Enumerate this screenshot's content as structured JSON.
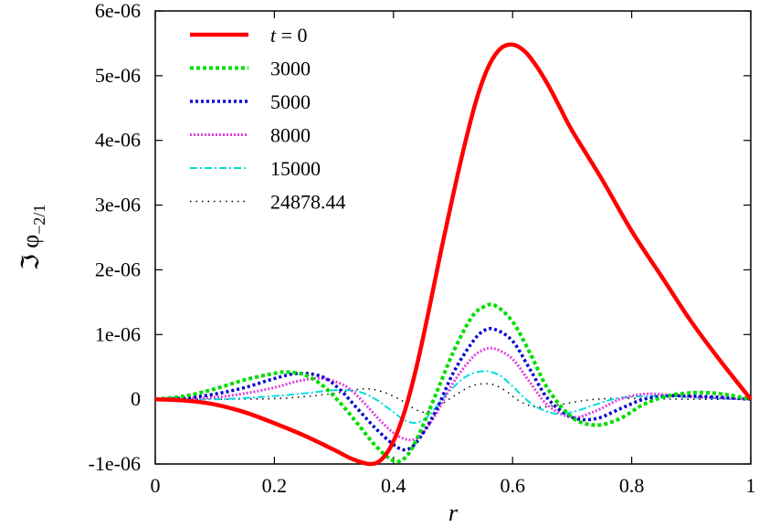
{
  "chart_data": {
    "type": "line",
    "xlabel": "r",
    "ylabel": {
      "prefix": "ℑ φ",
      "subscript": "−2/1"
    },
    "xlim": [
      0,
      1
    ],
    "ylim": [
      -1e-06,
      6e-06
    ],
    "xticks": [
      0,
      0.2,
      0.4,
      0.6,
      0.8,
      1
    ],
    "xtick_labels": [
      "0",
      "0.2",
      "0.4",
      "0.6",
      "0.8",
      "1"
    ],
    "yticks": [
      -1e-06,
      0,
      1e-06,
      2e-06,
      3e-06,
      4e-06,
      5e-06,
      6e-06
    ],
    "ytick_labels": [
      "-1e-06",
      "0",
      "1e-06",
      "2e-06",
      "3e-06",
      "4e-06",
      "5e-06",
      "6e-06"
    ],
    "grid": false,
    "legend_position": "top-left",
    "series": [
      {
        "name": "t = 0",
        "name_italic": "t",
        "name_rest": " = 0",
        "color": "#ff0000",
        "dash": "",
        "width": 4.5,
        "x": [
          0,
          0.05,
          0.1,
          0.15,
          0.2,
          0.25,
          0.3,
          0.33,
          0.36,
          0.38,
          0.4,
          0.42,
          0.44,
          0.46,
          0.48,
          0.5,
          0.52,
          0.54,
          0.56,
          0.58,
          0.6,
          0.62,
          0.64,
          0.66,
          0.68,
          0.7,
          0.75,
          0.8,
          0.85,
          0.9,
          0.95,
          1
        ],
        "y": [
          0,
          -2e-08,
          -8e-08,
          -2e-07,
          -3.7e-07,
          -5.6e-07,
          -7.8e-07,
          -9.2e-07,
          -1e-06,
          -9.3e-07,
          -6.5e-07,
          -1.5e-07,
          5.5e-07,
          1.4e-06,
          2.3e-06,
          3.15e-06,
          3.95e-06,
          4.65e-06,
          5.15e-06,
          5.42e-06,
          5.48e-06,
          5.38e-06,
          5.15e-06,
          4.85e-06,
          4.5e-06,
          4.15e-06,
          3.4e-06,
          2.6e-06,
          1.9e-06,
          1.2e-06,
          5.8e-07,
          0
        ]
      },
      {
        "name": "3000",
        "color": "#00dd00",
        "dash": "4,3",
        "width": 4,
        "x": [
          0,
          0.05,
          0.1,
          0.15,
          0.2,
          0.22,
          0.25,
          0.28,
          0.31,
          0.34,
          0.37,
          0.4,
          0.42,
          0.44,
          0.47,
          0.5,
          0.53,
          0.55,
          0.57,
          0.6,
          0.63,
          0.66,
          0.7,
          0.74,
          0.78,
          0.82,
          0.86,
          0.9,
          0.93,
          0.96,
          1
        ],
        "y": [
          0,
          5e-08,
          1.6e-07,
          3e-07,
          4e-07,
          4.2e-07,
          3.8e-07,
          2.2e-07,
          -5e-08,
          -3.8e-07,
          -7.2e-07,
          -9.5e-07,
          -9e-07,
          -6e-07,
          5e-08,
          7.2e-07,
          1.25e-06,
          1.42e-06,
          1.45e-06,
          1.2e-06,
          7e-07,
          1.5e-07,
          -2.8e-07,
          -4e-07,
          -3e-07,
          -8e-08,
          5e-08,
          1e-07,
          1e-07,
          7e-08,
          0
        ]
      },
      {
        "name": "5000",
        "color": "#0000cc",
        "dash": "3,3",
        "width": 3.5,
        "x": [
          0,
          0.05,
          0.1,
          0.15,
          0.2,
          0.24,
          0.28,
          0.31,
          0.34,
          0.37,
          0.4,
          0.42,
          0.44,
          0.47,
          0.5,
          0.53,
          0.55,
          0.57,
          0.6,
          0.63,
          0.66,
          0.7,
          0.74,
          0.78,
          0.82,
          0.86,
          0.9,
          0.95,
          1
        ],
        "y": [
          0,
          2e-08,
          8e-08,
          1.8e-07,
          3.2e-07,
          4e-07,
          3.5e-07,
          1.5e-07,
          -1.5e-07,
          -4.5e-07,
          -7e-07,
          -7.8e-07,
          -6.5e-07,
          -2e-07,
          4e-07,
          8.5e-07,
          1.05e-06,
          1.08e-06,
          9e-07,
          4.5e-07,
          0.0,
          -2.8e-07,
          -3e-07,
          -1.5e-07,
          0.0,
          5e-08,
          5e-08,
          3e-08,
          0
        ]
      },
      {
        "name": "8000",
        "color": "#e040e0",
        "dash": "2,2",
        "width": 3,
        "x": [
          0,
          0.05,
          0.1,
          0.15,
          0.2,
          0.24,
          0.28,
          0.32,
          0.35,
          0.38,
          0.41,
          0.44,
          0.47,
          0.5,
          0.53,
          0.55,
          0.57,
          0.6,
          0.63,
          0.66,
          0.7,
          0.74,
          0.78,
          0.82,
          0.86,
          0.9,
          0.95,
          1
        ],
        "y": [
          0,
          1e-08,
          3e-08,
          9e-08,
          1.8e-07,
          2.8e-07,
          3.2e-07,
          2e-07,
          -5e-08,
          -3.5e-07,
          -5.8e-07,
          -6e-07,
          -2.5e-07,
          2.5e-07,
          6.2e-07,
          7.6e-07,
          7.8e-07,
          6.2e-07,
          2.5e-07,
          -1e-07,
          -2.8e-07,
          -1.8e-07,
          0.0,
          8e-08,
          7e-08,
          4e-08,
          2e-08,
          0
        ]
      },
      {
        "name": "15000",
        "color": "#00dddd",
        "dash": "8,3,2,3",
        "width": 2,
        "x": [
          0,
          0.1,
          0.15,
          0.2,
          0.25,
          0.3,
          0.34,
          0.37,
          0.4,
          0.42,
          0.44,
          0.46,
          0.48,
          0.5,
          0.52,
          0.54,
          0.56,
          0.58,
          0.6,
          0.62,
          0.64,
          0.67,
          0.7,
          0.74,
          0.78,
          0.84,
          0.9,
          0.95,
          1
        ],
        "y": [
          0,
          0.0,
          2e-08,
          5e-08,
          9e-08,
          1.4e-07,
          1.2e-07,
          0.0,
          -2e-07,
          -3.3e-07,
          -3.6e-07,
          -2.5e-07,
          -2e-08,
          1.8e-07,
          3.4e-07,
          4.2e-07,
          4.3e-07,
          3.6e-07,
          2e-07,
          2e-08,
          -1.2e-07,
          -2.2e-07,
          -2e-07,
          -8e-08,
          2e-08,
          5e-08,
          3e-08,
          1e-08,
          0
        ]
      },
      {
        "name": "24878.44",
        "color": "#000000",
        "dash": "1.5,5",
        "width": 1.5,
        "x": [
          0,
          0.1,
          0.2,
          0.25,
          0.3,
          0.35,
          0.38,
          0.41,
          0.43,
          0.45,
          0.47,
          0.49,
          0.51,
          0.53,
          0.55,
          0.57,
          0.59,
          0.61,
          0.63,
          0.65,
          0.68,
          0.72,
          0.76,
          0.82,
          0.9,
          1
        ],
        "y": [
          0,
          0.0,
          1e-08,
          4e-08,
          9e-08,
          1.6e-07,
          1.2e-07,
          0.0,
          -1.2e-07,
          -2e-07,
          -1.4e-07,
          -2e-08,
          1e-07,
          2e-07,
          2.4e-07,
          2.2e-07,
          1.2e-07,
          -2e-08,
          -1e-07,
          -1.2e-07,
          -8e-08,
          -2e-08,
          1e-08,
          1e-08,
          0.0,
          0
        ]
      }
    ]
  }
}
